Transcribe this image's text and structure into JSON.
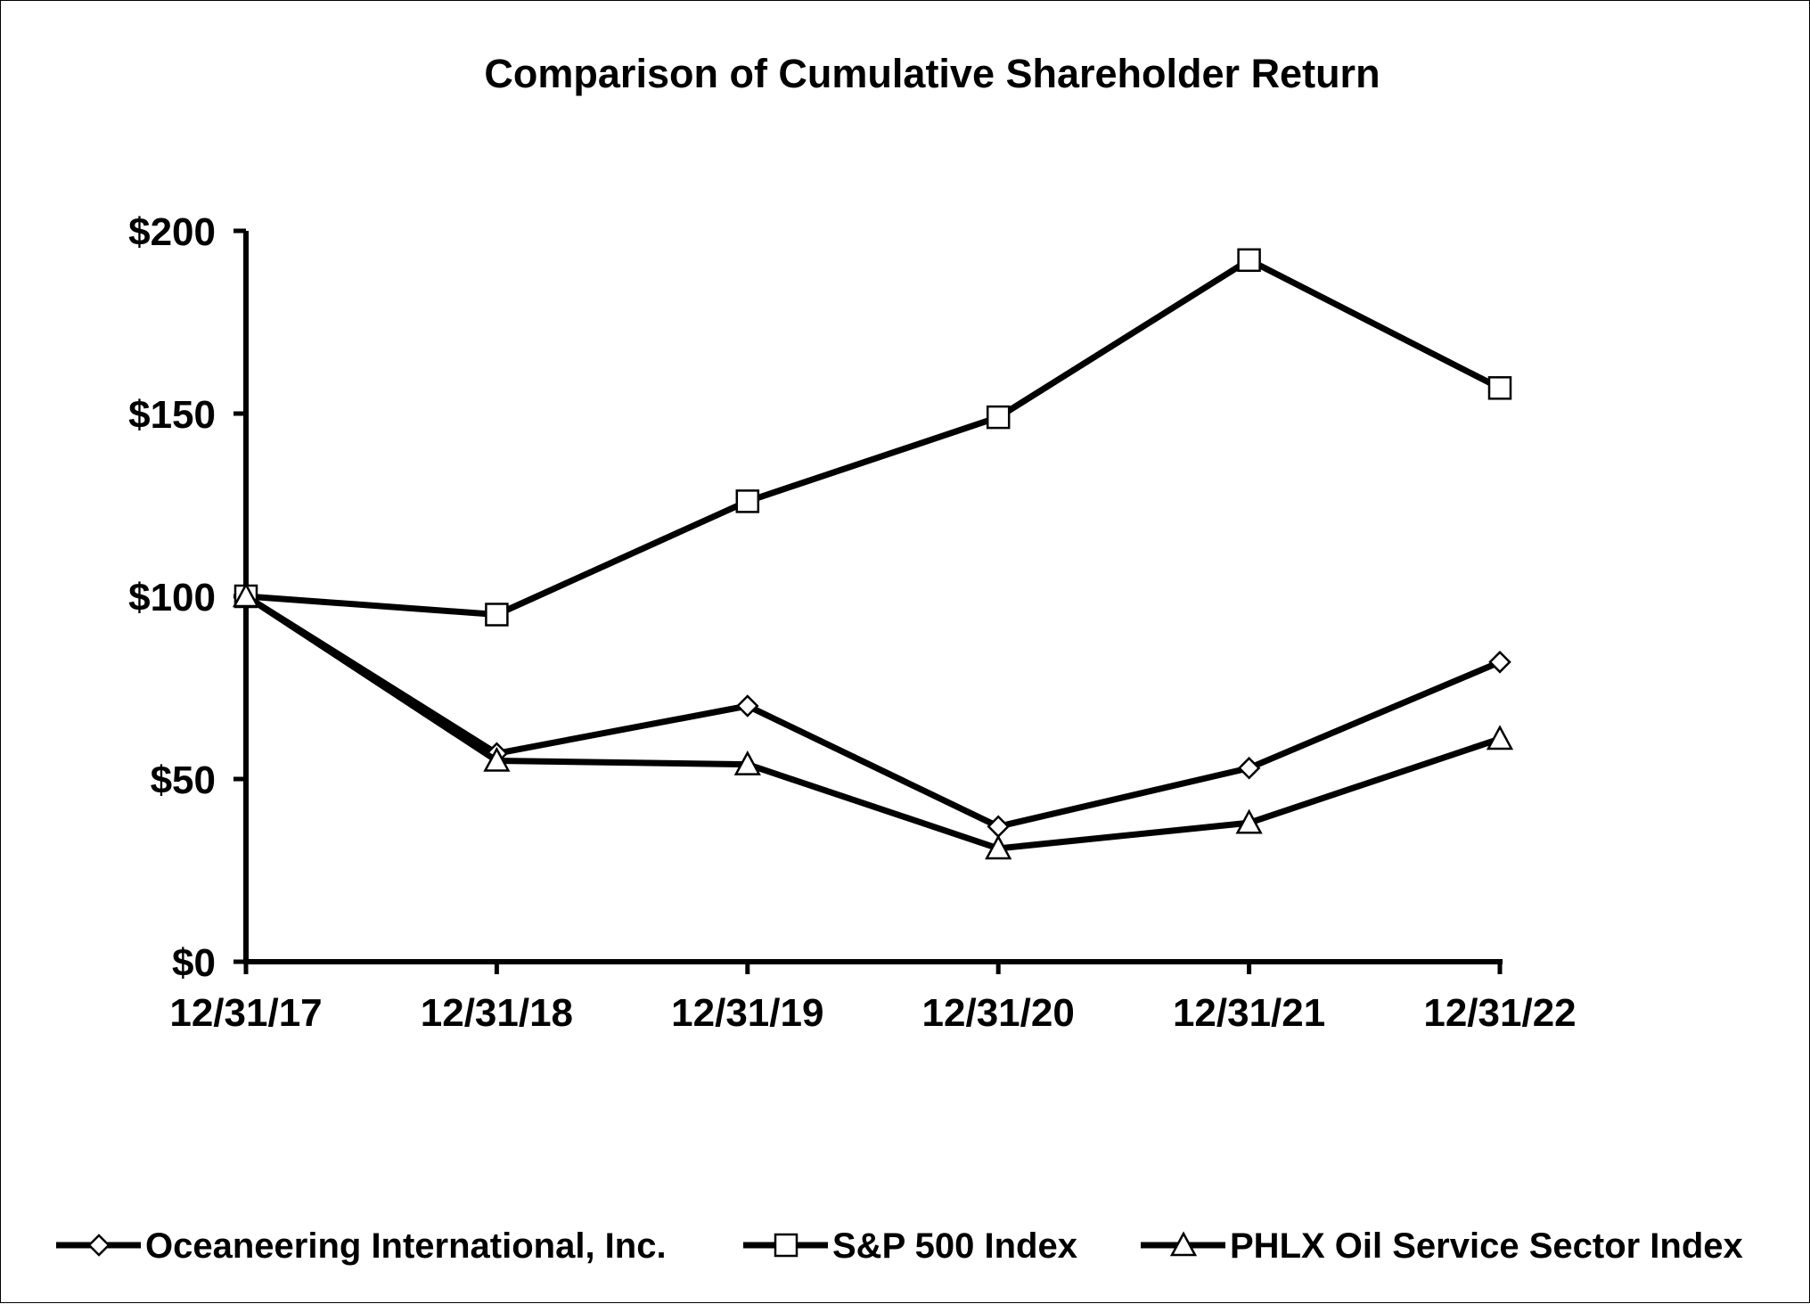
{
  "chart_data": {
    "type": "line",
    "title": "Comparison of Cumulative Shareholder Return",
    "xlabel": "",
    "ylabel": "",
    "categories": [
      "12/31/17",
      "12/31/18",
      "12/31/19",
      "12/31/20",
      "12/31/21",
      "12/31/22"
    ],
    "ylim": [
      0,
      200
    ],
    "yticks": [
      0,
      50,
      100,
      150,
      200
    ],
    "ytick_labels": [
      "$0",
      "$50",
      "$100",
      "$150",
      "$200"
    ],
    "grid": false,
    "legend_position": "bottom",
    "series": [
      {
        "name": "Oceaneering International, Inc.",
        "marker": "diamond",
        "color": "#000000",
        "values": [
          100,
          57,
          70,
          37,
          53,
          82
        ]
      },
      {
        "name": "S&P 500 Index",
        "marker": "square",
        "color": "#000000",
        "values": [
          100,
          95,
          126,
          149,
          192,
          157
        ]
      },
      {
        "name": "PHLX Oil Service Sector Index",
        "marker": "triangle",
        "color": "#000000",
        "values": [
          100,
          55,
          54,
          31,
          38,
          61
        ]
      }
    ]
  }
}
